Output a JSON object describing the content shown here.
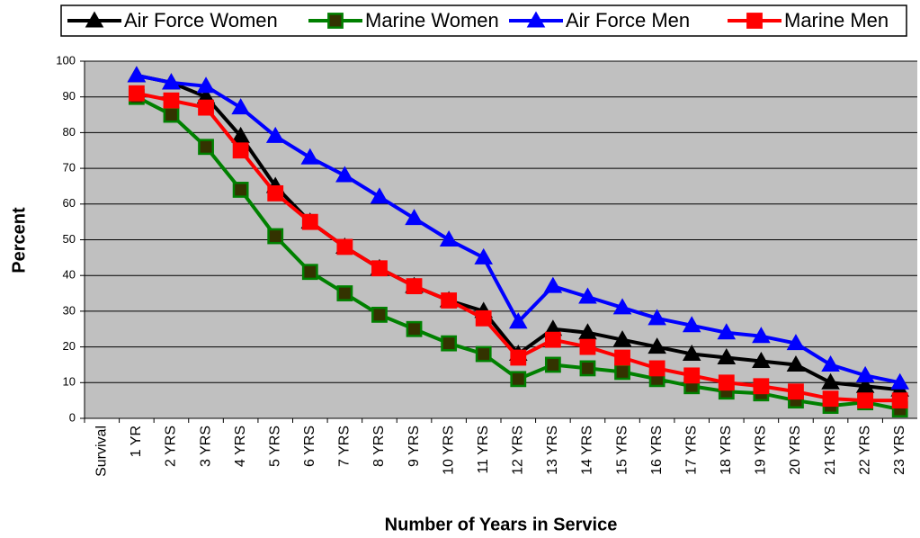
{
  "chart_data": {
    "type": "line",
    "x_label": "Number of Years in Service",
    "y_label": "Percent",
    "categories": [
      "Survival",
      "1 YR",
      "2 YRS",
      "3 YRS",
      "4 YRS",
      "5 YRS",
      "6 YRS",
      "7 YRS",
      "8 YRS",
      "9 YRS",
      "10 YRS",
      "11 YRS",
      "12 YRS",
      "13 YRS",
      "14 YRS",
      "15 YRS",
      "16 YRS",
      "17 YRS",
      "18 YRS",
      "19 YRS",
      "20 YRS",
      "21 YRS",
      "22 YRS",
      "23 YRS"
    ],
    "series": [
      {
        "name": "Air Force Women",
        "color": "#000000",
        "marker": "triangle",
        "marker_fill": "#000000",
        "values": [
          null,
          96,
          94,
          90,
          79,
          65,
          55,
          48,
          42,
          37,
          33,
          30,
          18,
          25,
          24,
          22,
          20,
          18,
          17,
          16,
          15,
          10,
          9,
          8
        ]
      },
      {
        "name": "Marine Women",
        "color": "#008000",
        "marker": "square",
        "marker_fill": "#333300",
        "values": [
          null,
          90,
          85,
          76,
          64,
          51,
          41,
          35,
          29,
          25,
          21,
          18,
          11,
          15,
          14,
          13,
          11,
          9,
          7.5,
          7,
          5,
          3.5,
          4.5,
          2.5
        ]
      },
      {
        "name": "Air Force Men",
        "color": "#0000ff",
        "marker": "triangle",
        "marker_fill": "#0000ff",
        "values": [
          null,
          96,
          94,
          93,
          87,
          79,
          73,
          68,
          62,
          56,
          50,
          45,
          27,
          37,
          34,
          31,
          28,
          26,
          24,
          23,
          21,
          15,
          12,
          10
        ]
      },
      {
        "name": "Marine Men",
        "color": "#ff0000",
        "marker": "square",
        "marker_fill": "#ff0000",
        "values": [
          null,
          91,
          89,
          87,
          75,
          63,
          55,
          48,
          42,
          37,
          33,
          28,
          17,
          22,
          20,
          17,
          14,
          12,
          10,
          9,
          7.5,
          5.5,
          5,
          5
        ]
      }
    ],
    "ylim": [
      0,
      100
    ],
    "yticks": [
      0,
      10,
      20,
      30,
      40,
      50,
      60,
      70,
      80,
      90,
      100
    ],
    "grid": true,
    "plot_background": "#c0c0c0",
    "legend": "top"
  }
}
